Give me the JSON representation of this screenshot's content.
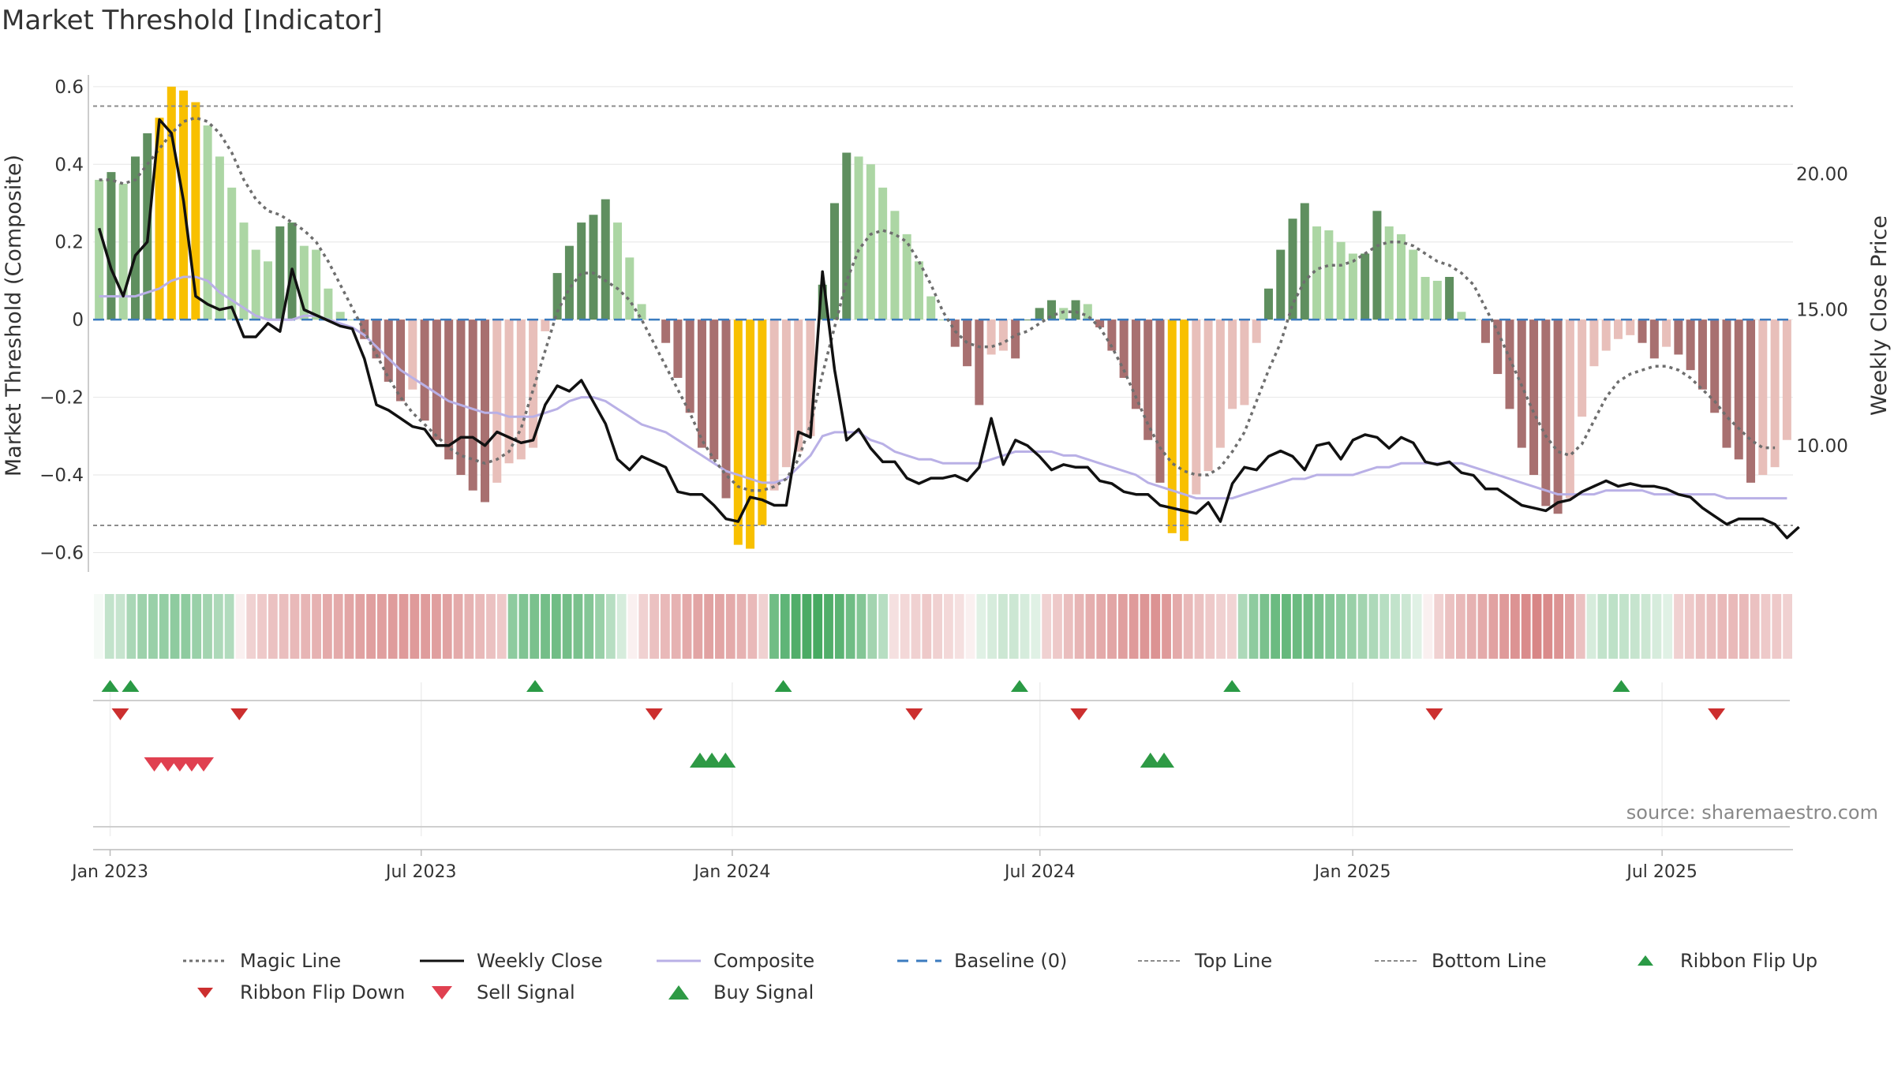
{
  "title": "Market Threshold [Indicator]",
  "source": "source: sharemaestro.com",
  "colors": {
    "magic_line": "#6e6e6e",
    "weekly_close": "#111111",
    "composite": "#b9b0e6",
    "baseline": "#3b7bbf",
    "bands": "#8c8c8c",
    "bar_strong_pos": "#5f8f5f",
    "bar_weak_pos": "#acd6a4",
    "bar_strong_neg": "#a87070",
    "bar_weak_neg": "#e8bfba",
    "bar_extreme": "#f8c000",
    "flip_up": "#2a9a45",
    "flip_down": "#cc2f2f",
    "signal_sell": "#e04050",
    "signal_buy": "#2e9a45"
  },
  "chart_data": {
    "type": "bar",
    "x_tick_labels": [
      "Jan 2023",
      "Jul 2023",
      "Jan 2024",
      "Jul 2024",
      "Jan 2025",
      "Jul 2025"
    ],
    "left_axis": {
      "label": "Market Threshold (Composite)",
      "ticks": [
        "0.6",
        "0.4",
        "0.2",
        "0",
        "−0.2",
        "−0.4",
        "−0.6"
      ],
      "range": [
        -0.66,
        0.62
      ]
    },
    "right_axis": {
      "label": "Weekly Close Price",
      "ticks": [
        "20.00",
        "15.00",
        "10.00"
      ],
      "range": [
        5.2,
        23.5
      ]
    },
    "top_line": 0.55,
    "bottom_line": -0.53,
    "baseline": 0,
    "composite_bars": [
      0.36,
      0.38,
      0.35,
      0.42,
      0.48,
      0.52,
      0.6,
      0.59,
      0.56,
      0.5,
      0.42,
      0.34,
      0.25,
      0.18,
      0.15,
      0.24,
      0.25,
      0.19,
      0.18,
      0.08,
      0.02,
      0.0,
      -0.05,
      -0.1,
      -0.16,
      -0.21,
      -0.18,
      -0.26,
      -0.31,
      -0.36,
      -0.4,
      -0.44,
      -0.47,
      -0.42,
      -0.37,
      -0.36,
      -0.33,
      -0.03,
      0.12,
      0.19,
      0.25,
      0.27,
      0.31,
      0.25,
      0.16,
      0.04,
      0.0,
      -0.06,
      -0.15,
      -0.24,
      -0.33,
      -0.36,
      -0.46,
      -0.58,
      -0.59,
      -0.53,
      -0.44,
      -0.38,
      -0.34,
      -0.3,
      0.09,
      0.3,
      0.43,
      0.42,
      0.4,
      0.34,
      0.28,
      0.22,
      0.15,
      0.06,
      0.0,
      -0.07,
      -0.12,
      -0.22,
      -0.09,
      -0.08,
      -0.1,
      0.0,
      0.03,
      0.05,
      0.03,
      0.05,
      0.04,
      -0.02,
      -0.08,
      -0.15,
      -0.23,
      -0.31,
      -0.42,
      -0.55,
      -0.57,
      -0.45,
      -0.39,
      -0.33,
      -0.23,
      -0.22,
      -0.06,
      0.08,
      0.18,
      0.26,
      0.3,
      0.24,
      0.23,
      0.2,
      0.17,
      0.17,
      0.28,
      0.24,
      0.22,
      0.18,
      0.11,
      0.1,
      0.11,
      0.02,
      0.0,
      -0.06,
      -0.14,
      -0.23,
      -0.33,
      -0.4,
      -0.48,
      -0.5,
      -0.46,
      -0.25,
      -0.12,
      -0.08,
      -0.05,
      -0.04,
      -0.06,
      -0.1,
      -0.07,
      -0.09,
      -0.13,
      -0.18,
      -0.24,
      -0.33,
      -0.36,
      -0.42,
      -0.4,
      -0.38,
      -0.31
    ],
    "magic_line": [
      0.36,
      0.36,
      0.35,
      0.36,
      0.4,
      0.44,
      0.48,
      0.51,
      0.52,
      0.51,
      0.48,
      0.43,
      0.36,
      0.31,
      0.28,
      0.27,
      0.25,
      0.23,
      0.2,
      0.15,
      0.09,
      0.03,
      -0.03,
      -0.09,
      -0.15,
      -0.2,
      -0.24,
      -0.27,
      -0.3,
      -0.33,
      -0.35,
      -0.36,
      -0.37,
      -0.36,
      -0.34,
      -0.28,
      -0.18,
      -0.08,
      0.02,
      0.08,
      0.12,
      0.12,
      0.1,
      0.08,
      0.05,
      0.0,
      -0.06,
      -0.12,
      -0.18,
      -0.24,
      -0.31,
      -0.36,
      -0.4,
      -0.43,
      -0.44,
      -0.44,
      -0.43,
      -0.41,
      -0.36,
      -0.27,
      -0.14,
      -0.02,
      0.1,
      0.18,
      0.22,
      0.23,
      0.22,
      0.2,
      0.15,
      0.09,
      0.02,
      -0.03,
      -0.06,
      -0.07,
      -0.07,
      -0.06,
      -0.04,
      -0.03,
      -0.01,
      0.01,
      0.02,
      0.02,
      0.01,
      -0.02,
      -0.07,
      -0.13,
      -0.2,
      -0.27,
      -0.33,
      -0.37,
      -0.39,
      -0.4,
      -0.4,
      -0.38,
      -0.34,
      -0.29,
      -0.21,
      -0.13,
      -0.06,
      0.04,
      0.1,
      0.13,
      0.14,
      0.14,
      0.15,
      0.17,
      0.19,
      0.2,
      0.2,
      0.19,
      0.17,
      0.15,
      0.14,
      0.12,
      0.09,
      0.03,
      -0.03,
      -0.1,
      -0.17,
      -0.24,
      -0.3,
      -0.34,
      -0.35,
      -0.32,
      -0.26,
      -0.2,
      -0.16,
      -0.14,
      -0.13,
      -0.12,
      -0.12,
      -0.13,
      -0.15,
      -0.18,
      -0.21,
      -0.25,
      -0.28,
      -0.31,
      -0.33,
      -0.33
    ],
    "composite_line": [
      0.06,
      0.06,
      0.06,
      0.06,
      0.07,
      0.08,
      0.1,
      0.11,
      0.11,
      0.1,
      0.07,
      0.05,
      0.03,
      0.01,
      0.0,
      0.0,
      0.0,
      0.01,
      0.01,
      0.0,
      -0.01,
      -0.02,
      -0.04,
      -0.07,
      -0.1,
      -0.13,
      -0.15,
      -0.17,
      -0.19,
      -0.21,
      -0.22,
      -0.23,
      -0.24,
      -0.24,
      -0.25,
      -0.25,
      -0.25,
      -0.24,
      -0.23,
      -0.21,
      -0.2,
      -0.2,
      -0.21,
      -0.23,
      -0.25,
      -0.27,
      -0.28,
      -0.29,
      -0.31,
      -0.33,
      -0.35,
      -0.37,
      -0.39,
      -0.4,
      -0.41,
      -0.42,
      -0.42,
      -0.41,
      -0.38,
      -0.35,
      -0.3,
      -0.29,
      -0.29,
      -0.29,
      -0.31,
      -0.32,
      -0.34,
      -0.35,
      -0.36,
      -0.36,
      -0.37,
      -0.37,
      -0.37,
      -0.37,
      -0.36,
      -0.35,
      -0.34,
      -0.34,
      -0.34,
      -0.34,
      -0.35,
      -0.35,
      -0.36,
      -0.37,
      -0.38,
      -0.39,
      -0.4,
      -0.42,
      -0.43,
      -0.44,
      -0.45,
      -0.46,
      -0.46,
      -0.46,
      -0.46,
      -0.45,
      -0.44,
      -0.43,
      -0.42,
      -0.41,
      -0.41,
      -0.4,
      -0.4,
      -0.4,
      -0.4,
      -0.39,
      -0.38,
      -0.38,
      -0.37,
      -0.37,
      -0.37,
      -0.37,
      -0.37,
      -0.37,
      -0.38,
      -0.39,
      -0.4,
      -0.41,
      -0.42,
      -0.43,
      -0.44,
      -0.45,
      -0.45,
      -0.45,
      -0.45,
      -0.44,
      -0.44,
      -0.44,
      -0.44,
      -0.45,
      -0.45,
      -0.45,
      -0.45,
      -0.45,
      -0.45,
      -0.46,
      -0.46,
      -0.46,
      -0.46,
      -0.46,
      -0.46
    ],
    "weekly_close": [
      18.0,
      16.5,
      15.5,
      17.0,
      17.5,
      22.0,
      21.5,
      19.0,
      15.5,
      15.2,
      15.0,
      15.1,
      14.0,
      14.0,
      14.5,
      14.2,
      16.5,
      15.0,
      14.8,
      14.6,
      14.4,
      14.3,
      13.2,
      11.5,
      11.3,
      11.0,
      10.7,
      10.6,
      10.0,
      10.0,
      10.3,
      10.3,
      10.0,
      10.5,
      10.3,
      10.1,
      10.2,
      11.5,
      12.2,
      12.0,
      12.4,
      11.6,
      10.8,
      9.5,
      9.1,
      9.6,
      9.4,
      9.2,
      8.3,
      8.2,
      8.2,
      7.8,
      7.3,
      7.2,
      8.1,
      8.0,
      7.8,
      7.8,
      10.5,
      10.3,
      16.4,
      12.8,
      10.2,
      10.6,
      9.9,
      9.4,
      9.4,
      8.8,
      8.6,
      8.8,
      8.8,
      8.9,
      8.7,
      9.2,
      11.0,
      9.3,
      10.2,
      10.0,
      9.6,
      9.1,
      9.3,
      9.2,
      9.2,
      8.7,
      8.6,
      8.3,
      8.2,
      8.2,
      7.8,
      7.7,
      7.6,
      7.5,
      7.9,
      7.2,
      8.6,
      9.2,
      9.1,
      9.6,
      9.8,
      9.6,
      9.1,
      10.0,
      10.1,
      9.5,
      10.2,
      10.4,
      10.3,
      9.9,
      10.3,
      10.1,
      9.4,
      9.3,
      9.4,
      9.0,
      8.9,
      8.4,
      8.4,
      8.1,
      7.8,
      7.7,
      7.6,
      7.9,
      8.0,
      8.3,
      8.5,
      8.7,
      8.5,
      8.6,
      8.5,
      8.5,
      8.4,
      8.2,
      8.1,
      7.7,
      7.4,
      7.1,
      7.3,
      7.3,
      7.3,
      7.1,
      6.6,
      7.0
    ],
    "ribbon_values": [
      0.05,
      0.3,
      0.28,
      0.42,
      0.48,
      0.5,
      0.52,
      0.55,
      0.55,
      0.5,
      0.45,
      0.4,
      0.38,
      -0.1,
      -0.3,
      -0.35,
      -0.4,
      -0.42,
      -0.45,
      -0.48,
      -0.5,
      -0.55,
      -0.55,
      -0.58,
      -0.6,
      -0.62,
      -0.62,
      -0.64,
      -0.65,
      -0.65,
      -0.64,
      -0.62,
      -0.6,
      -0.55,
      -0.5,
      -0.45,
      -0.4,
      -0.35,
      0.55,
      0.62,
      0.65,
      0.68,
      0.7,
      0.68,
      0.65,
      0.6,
      0.5,
      0.35,
      0.2,
      -0.1,
      -0.3,
      -0.4,
      -0.45,
      -0.5,
      -0.55,
      -0.58,
      -0.6,
      -0.58,
      -0.55,
      -0.5,
      -0.45,
      -0.3,
      0.7,
      0.78,
      0.85,
      0.88,
      0.9,
      0.85,
      0.8,
      0.7,
      0.6,
      0.45,
      0.35,
      -0.2,
      -0.25,
      -0.3,
      -0.35,
      -0.3,
      -0.25,
      -0.2,
      -0.1,
      0.15,
      0.2,
      0.25,
      0.25,
      0.2,
      0.15,
      -0.3,
      -0.35,
      -0.42,
      -0.48,
      -0.52,
      -0.55,
      -0.58,
      -0.62,
      -0.65,
      -0.68,
      -0.7,
      -0.65,
      -0.55,
      -0.45,
      -0.4,
      -0.35,
      -0.3,
      -0.28,
      0.4,
      0.55,
      0.65,
      0.72,
      0.75,
      0.72,
      0.7,
      0.65,
      0.6,
      0.55,
      0.5,
      0.45,
      0.4,
      0.35,
      0.3,
      0.25,
      0.15,
      -0.1,
      -0.3,
      -0.4,
      -0.45,
      -0.5,
      -0.55,
      -0.6,
      -0.65,
      -0.7,
      -0.75,
      -0.78,
      -0.75,
      -0.7,
      -0.6,
      -0.4,
      0.2,
      0.3,
      0.32,
      0.3,
      0.28,
      0.25,
      0.2,
      0.15,
      -0.3,
      -0.35,
      -0.4,
      -0.42,
      -0.45,
      -0.45,
      -0.45,
      -0.4,
      -0.35,
      -0.35,
      -0.3
    ],
    "ribbon_flip_up_x": [
      0.01,
      0.022,
      0.26,
      0.406,
      0.545,
      0.67,
      0.899
    ],
    "ribbon_flip_down_x": [
      0.016,
      0.086,
      0.33,
      0.483,
      0.58,
      0.789,
      0.955
    ],
    "sell_signal_x": [
      0.036,
      0.044,
      0.051,
      0.058,
      0.065
    ],
    "buy_signal_x": [
      0.357,
      0.364,
      0.372,
      0.622,
      0.63
    ],
    "legend": [
      {
        "label": "Magic Line",
        "kind": "dotted",
        "color": "#6e6e6e"
      },
      {
        "label": "Weekly Close",
        "kind": "solid",
        "color": "#111111"
      },
      {
        "label": "Composite",
        "kind": "solid",
        "color": "#b9b0e6"
      },
      {
        "label": "Baseline (0)",
        "kind": "dashed",
        "color": "#3b7bbf"
      },
      {
        "label": "Top Line",
        "kind": "thindash",
        "color": "#8c8c8c"
      },
      {
        "label": "Bottom Line",
        "kind": "thindash",
        "color": "#8c8c8c"
      },
      {
        "label": "Ribbon Flip Up",
        "kind": "tri-up-small",
        "color": "#2a9a45"
      },
      {
        "label": "Ribbon Flip Down",
        "kind": "tri-down-small",
        "color": "#cc2f2f"
      },
      {
        "label": "Sell Signal",
        "kind": "tri-down",
        "color": "#e04050"
      },
      {
        "label": "Buy Signal",
        "kind": "tri-up",
        "color": "#2e9a45"
      }
    ]
  }
}
